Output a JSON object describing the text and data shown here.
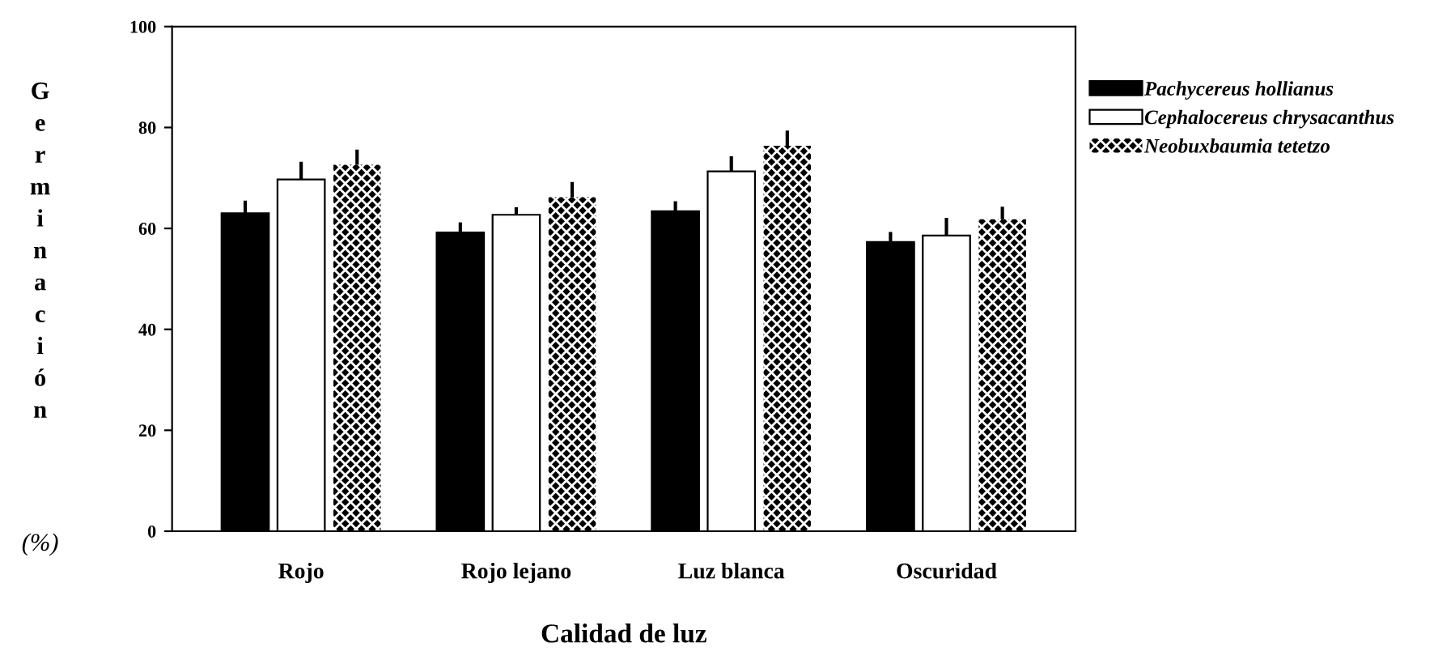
{
  "chart_data": {
    "type": "bar",
    "xlabel": "Calidad de luz",
    "ylabel": "Germinación (%)",
    "categories": [
      "Rojo",
      "Rojo lejano",
      "Luz blanca",
      "Oscuridad"
    ],
    "series": [
      {
        "name": "Pachycereus hollianus",
        "color": "#000000",
        "values": [
          63,
          59.2,
          63.4,
          57.3
        ],
        "errors": [
          2.5,
          2,
          2,
          2
        ]
      },
      {
        "name": "Cephalocereus chrysacanthus",
        "color": "#ffffff",
        "values": [
          69.7,
          62.7,
          71.3,
          58.6
        ],
        "errors": [
          3.5,
          1.5,
          3,
          3.5
        ]
      },
      {
        "name": "Neobuxbaumia tetetzo",
        "color": "#000000",
        "values": [
          72.6,
          66.2,
          76.4,
          61.8
        ],
        "errors": [
          3,
          3,
          3,
          2.5
        ]
      }
    ],
    "ylim": [
      0,
      100
    ],
    "yticks": [
      0,
      20,
      40,
      60,
      80,
      100
    ],
    "grid": false,
    "legend": "top right"
  }
}
